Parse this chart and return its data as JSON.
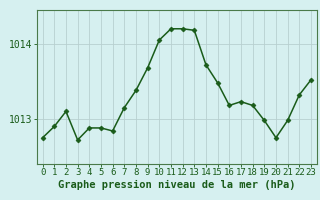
{
  "x": [
    0,
    1,
    2,
    3,
    4,
    5,
    6,
    7,
    8,
    9,
    10,
    11,
    12,
    13,
    14,
    15,
    16,
    17,
    18,
    19,
    20,
    21,
    22,
    23
  ],
  "y": [
    1012.75,
    1012.9,
    1013.1,
    1012.72,
    1012.88,
    1012.88,
    1012.84,
    1013.15,
    1013.38,
    1013.68,
    1014.05,
    1014.2,
    1014.2,
    1014.18,
    1013.72,
    1013.48,
    1013.18,
    1013.23,
    1013.18,
    1012.98,
    1012.75,
    1012.98,
    1013.32,
    1013.52
  ],
  "line_color": "#1a5c1a",
  "marker": "D",
  "marker_size": 2.5,
  "background_color": "#d6f0f0",
  "grid_color": "#b8d0d0",
  "xlabel": "Graphe pression niveau de la mer (hPa)",
  "xlabel_fontsize": 7.5,
  "yticks": [
    1013,
    1014
  ],
  "ylim": [
    1012.4,
    1014.45
  ],
  "xlim": [
    -0.5,
    23.5
  ],
  "tick_fontsize": 6.5,
  "line_width": 1.1,
  "spine_color": "#4a7a4a"
}
